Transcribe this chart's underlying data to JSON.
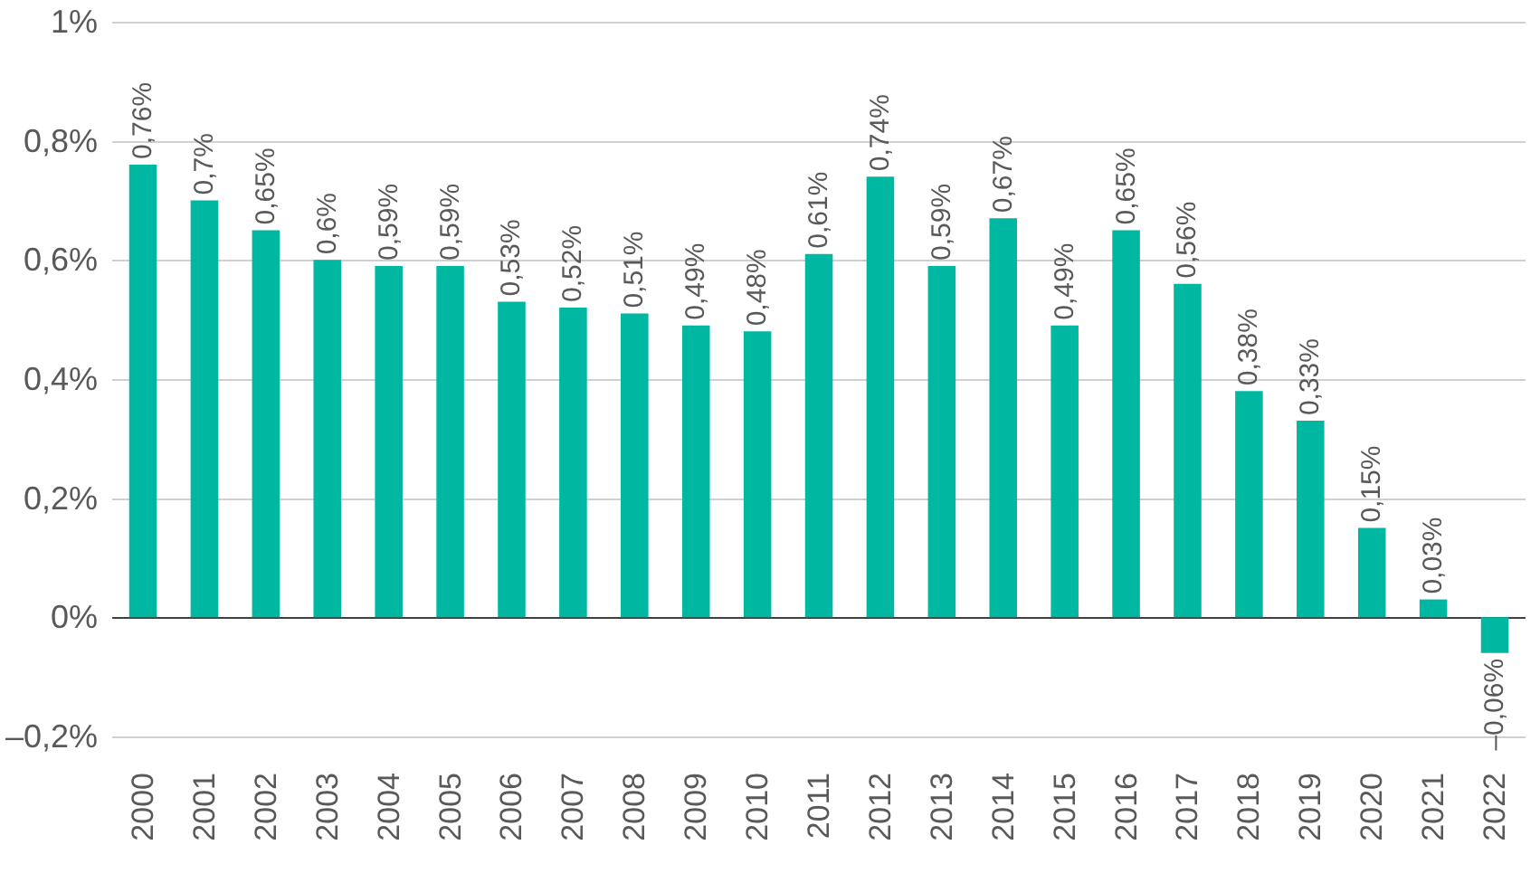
{
  "chart_data": {
    "type": "bar",
    "categories": [
      "2000",
      "2001",
      "2002",
      "2003",
      "2004",
      "2005",
      "2006",
      "2007",
      "2008",
      "2009",
      "2010",
      "2011",
      "2012",
      "2013",
      "2014",
      "2015",
      "2016",
      "2017",
      "2018",
      "2019",
      "2020",
      "2021",
      "2022"
    ],
    "values": [
      0.76,
      0.7,
      0.65,
      0.6,
      0.59,
      0.59,
      0.53,
      0.52,
      0.51,
      0.49,
      0.48,
      0.61,
      0.74,
      0.59,
      0.67,
      0.49,
      0.65,
      0.56,
      0.38,
      0.33,
      0.15,
      0.03,
      -0.06
    ],
    "value_labels": [
      "0,76%",
      "0,7%",
      "0,65%",
      "0,6%",
      "0,59%",
      "0,59%",
      "0,53%",
      "0,52%",
      "0,51%",
      "0,49%",
      "0,48%",
      "0,61%",
      "0,74%",
      "0,59%",
      "0,67%",
      "0,49%",
      "0,65%",
      "0,56%",
      "0,38%",
      "0,33%",
      "0,15%",
      "0,03%",
      "–0,06%"
    ],
    "color": "#00b8a2",
    "ylim": [
      -0.2,
      1
    ],
    "yticks": [
      {
        "value": -0.2,
        "label": "–0,2%"
      },
      {
        "value": 0,
        "label": "0%"
      },
      {
        "value": 0.2,
        "label": "0,2%"
      },
      {
        "value": 0.4,
        "label": "0,4%"
      },
      {
        "value": 0.6,
        "label": "0,6%"
      },
      {
        "value": 0.8,
        "label": "0,8%"
      },
      {
        "value": 1,
        "label": "1%"
      }
    ],
    "grid": "y"
  }
}
